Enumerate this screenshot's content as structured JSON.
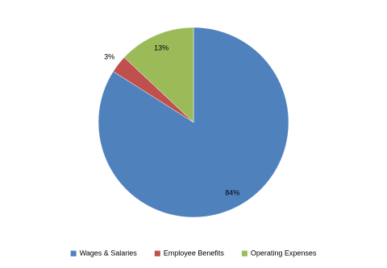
{
  "chart_data": {
    "type": "pie",
    "categories": [
      "Wages & Salaries",
      "Employee Benefits",
      "Operating Expenses"
    ],
    "values": [
      84,
      3,
      13
    ],
    "value_labels": [
      "84%",
      "3%",
      "13%"
    ],
    "colors": [
      "#4f81bd",
      "#c0504d",
      "#9bbb59"
    ],
    "legend": "bottom"
  }
}
